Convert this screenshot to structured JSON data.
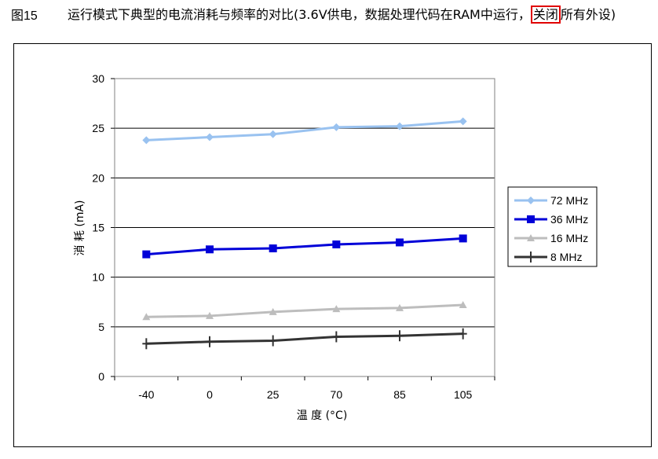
{
  "figure": {
    "label": "图15",
    "caption_before": "运行模式下典型的电流消耗与频率的对比(3.6V供电，数据处理代码在RAM中运行，",
    "caption_highlight": "关闭",
    "caption_after": "所有外设)"
  },
  "chart_data": {
    "type": "line",
    "categories": [
      "-40",
      "0",
      "25",
      "70",
      "85",
      "105"
    ],
    "xlabel": "温 度 (°C)",
    "ylabel": "消 耗 (mA)",
    "ylim": [
      0,
      30
    ],
    "yticks": [
      0,
      5,
      10,
      15,
      20,
      25,
      30
    ],
    "grid": "horizontal",
    "legend_position": "right",
    "series": [
      {
        "name": "72 MHz",
        "values": [
          23.8,
          24.1,
          24.4,
          25.1,
          25.2,
          25.7
        ],
        "color": "#99c2f0",
        "marker": "diamond"
      },
      {
        "name": "36 MHz",
        "values": [
          12.3,
          12.8,
          12.9,
          13.3,
          13.5,
          13.9
        ],
        "color": "#0000d8",
        "marker": "square"
      },
      {
        "name": "16 MHz",
        "values": [
          6.0,
          6.1,
          6.5,
          6.8,
          6.9,
          7.2
        ],
        "color": "#bdbdbd",
        "marker": "triangle"
      },
      {
        "name": "8 MHz",
        "values": [
          3.3,
          3.5,
          3.6,
          4.0,
          4.1,
          4.3
        ],
        "color": "#333333",
        "marker": "plus"
      }
    ]
  }
}
